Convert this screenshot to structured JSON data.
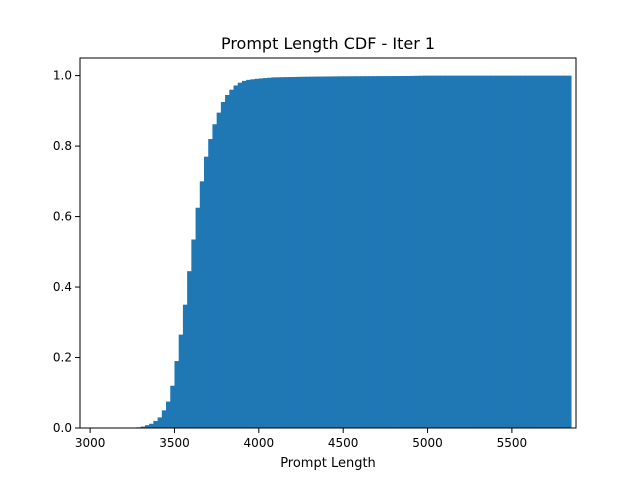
{
  "chart_data": {
    "type": "bar",
    "title": "Prompt Length CDF - Iter 1",
    "xlabel": "Prompt Length",
    "ylabel": "",
    "xlim": [
      2940,
      5880
    ],
    "ylim": [
      0,
      1.05
    ],
    "xticks": [
      3000,
      3500,
      4000,
      4500,
      5000,
      5500
    ],
    "xtick_labels": [
      "3000",
      "3500",
      "4000",
      "4500",
      "5000",
      "5500"
    ],
    "yticks": [
      0.0,
      0.2,
      0.4,
      0.6,
      0.8,
      1.0
    ],
    "ytick_labels": [
      "0.0",
      "0.2",
      "0.4",
      "0.6",
      "0.8",
      "1.0"
    ],
    "bin_width": 25,
    "bin_start": 3050,
    "bin_end": 5850,
    "bar_color": "#1f77b4",
    "grid": false,
    "cdf_points": [
      {
        "x": 3050,
        "y": 0.0
      },
      {
        "x": 3250,
        "y": 0.0
      },
      {
        "x": 3300,
        "y": 0.002
      },
      {
        "x": 3325,
        "y": 0.004
      },
      {
        "x": 3350,
        "y": 0.008
      },
      {
        "x": 3375,
        "y": 0.012
      },
      {
        "x": 3400,
        "y": 0.02
      },
      {
        "x": 3425,
        "y": 0.03
      },
      {
        "x": 3450,
        "y": 0.05
      },
      {
        "x": 3475,
        "y": 0.075
      },
      {
        "x": 3500,
        "y": 0.12
      },
      {
        "x": 3525,
        "y": 0.19
      },
      {
        "x": 3550,
        "y": 0.265
      },
      {
        "x": 3575,
        "y": 0.35
      },
      {
        "x": 3600,
        "y": 0.445
      },
      {
        "x": 3625,
        "y": 0.535
      },
      {
        "x": 3650,
        "y": 0.625
      },
      {
        "x": 3675,
        "y": 0.7
      },
      {
        "x": 3700,
        "y": 0.77
      },
      {
        "x": 3725,
        "y": 0.82
      },
      {
        "x": 3750,
        "y": 0.862
      },
      {
        "x": 3775,
        "y": 0.895
      },
      {
        "x": 3800,
        "y": 0.925
      },
      {
        "x": 3825,
        "y": 0.945
      },
      {
        "x": 3850,
        "y": 0.96
      },
      {
        "x": 3875,
        "y": 0.972
      },
      {
        "x": 3900,
        "y": 0.98
      },
      {
        "x": 3925,
        "y": 0.985
      },
      {
        "x": 3950,
        "y": 0.988
      },
      {
        "x": 4000,
        "y": 0.991
      },
      {
        "x": 4050,
        "y": 0.993
      },
      {
        "x": 4100,
        "y": 0.995
      },
      {
        "x": 4200,
        "y": 0.996
      },
      {
        "x": 4300,
        "y": 0.997
      },
      {
        "x": 4500,
        "y": 0.998
      },
      {
        "x": 4900,
        "y": 0.999
      },
      {
        "x": 5000,
        "y": 1.0
      },
      {
        "x": 5850,
        "y": 1.0
      }
    ]
  }
}
